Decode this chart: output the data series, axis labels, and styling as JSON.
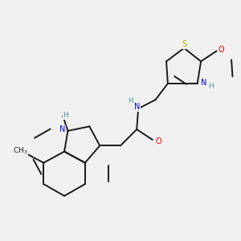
{
  "background_color": "#f0f0f0",
  "bond_color": "#1a1a1a",
  "atom_colors": {
    "N": "#0000dd",
    "O": "#ee0000",
    "S": "#bbbb00",
    "C": "#1a1a1a",
    "H": "#4a9a9a"
  },
  "figsize": [
    3.0,
    3.0
  ],
  "dpi": 100
}
